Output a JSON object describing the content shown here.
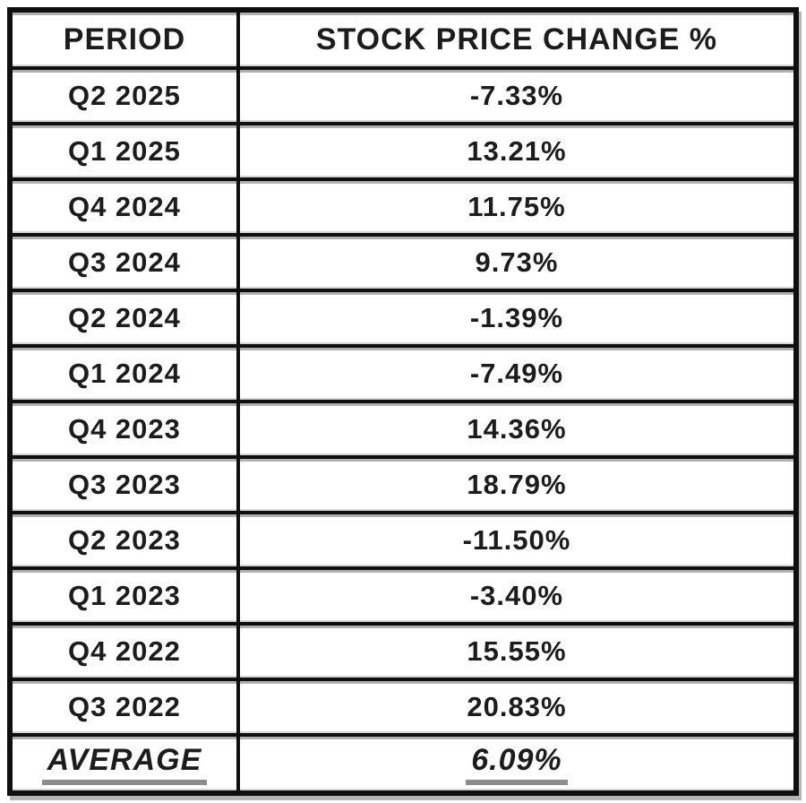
{
  "table": {
    "columns": [
      "PERIOD",
      "STOCK PRICE CHANGE %"
    ],
    "rows": [
      {
        "period": "Q2 2025",
        "change": "-7.33%"
      },
      {
        "period": "Q1 2025",
        "change": "13.21%"
      },
      {
        "period": "Q4 2024",
        "change": "11.75%"
      },
      {
        "period": "Q3 2024",
        "change": "9.73%"
      },
      {
        "period": "Q2 2024",
        "change": "-1.39%"
      },
      {
        "period": "Q1 2024",
        "change": "-7.49%"
      },
      {
        "period": "Q4 2023",
        "change": "14.36%"
      },
      {
        "period": "Q3 2023",
        "change": "18.79%"
      },
      {
        "period": "Q2 2023",
        "change": "-11.50%"
      },
      {
        "period": "Q1 2023",
        "change": "-3.40%"
      },
      {
        "period": "Q4 2022",
        "change": "15.55%"
      },
      {
        "period": "Q3 2022",
        "change": "20.83%"
      }
    ],
    "footer": {
      "label": "AVERAGE",
      "value": "6.09%"
    }
  },
  "colors": {
    "border": "#0f0f0f",
    "text": "#1c1c1c",
    "underline": "#8c8c8c",
    "halo": "#b0b0b0",
    "background": "#ffffff"
  },
  "chart_data": {
    "type": "table",
    "columns": [
      "PERIOD",
      "STOCK PRICE CHANGE %"
    ],
    "rows": [
      [
        "Q2 2025",
        -7.33
      ],
      [
        "Q1 2025",
        13.21
      ],
      [
        "Q4 2024",
        11.75
      ],
      [
        "Q3 2024",
        9.73
      ],
      [
        "Q2 2024",
        -1.39
      ],
      [
        "Q1 2024",
        -7.49
      ],
      [
        "Q4 2023",
        14.36
      ],
      [
        "Q3 2023",
        18.79
      ],
      [
        "Q2 2023",
        -11.5
      ],
      [
        "Q1 2023",
        -3.4
      ],
      [
        "Q4 2022",
        15.55
      ],
      [
        "Q3 2022",
        20.83
      ]
    ],
    "average": 6.09
  }
}
